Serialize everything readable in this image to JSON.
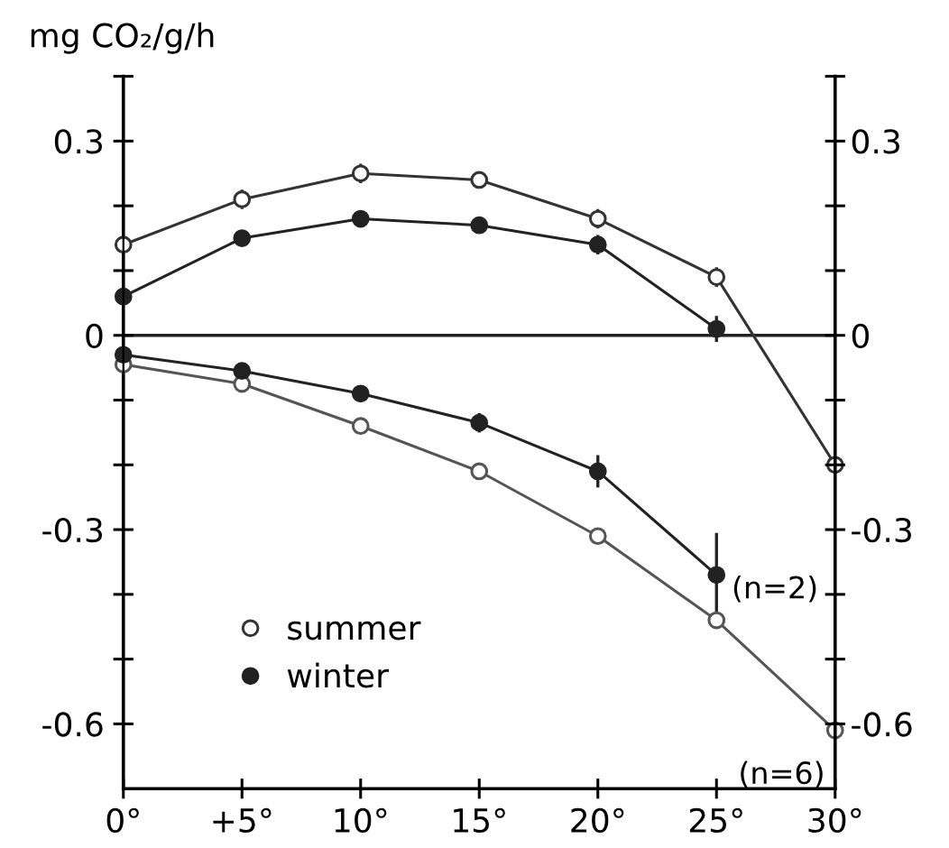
{
  "chart_data": {
    "type": "line",
    "ylabel": "mg CO₂/g/h",
    "x": [
      0,
      5,
      10,
      15,
      20,
      25,
      30
    ],
    "xlim": [
      0,
      30
    ],
    "xticks": [
      {
        "value": 0,
        "label": "0°"
      },
      {
        "value": 5,
        "label": "+5°"
      },
      {
        "value": 10,
        "label": "10°"
      },
      {
        "value": 15,
        "label": "15°"
      },
      {
        "value": 20,
        "label": "20°"
      },
      {
        "value": 25,
        "label": "25°"
      },
      {
        "value": 30,
        "label": "30°"
      }
    ],
    "ylim": [
      -0.7,
      0.4
    ],
    "yticks": [
      {
        "value": 0.4,
        "label": null
      },
      0.3,
      {
        "value": 0.2,
        "label": null
      },
      {
        "value": 0.1,
        "label": null
      },
      0,
      {
        "value": -0.1,
        "label": null
      },
      {
        "value": -0.2,
        "label": null
      },
      {
        "value": -0.3,
        "label": "-0.3"
      },
      {
        "value": -0.4,
        "label": null
      },
      {
        "value": -0.5,
        "label": null
      },
      {
        "value": -0.6,
        "label": "-0.6"
      }
    ],
    "y2lim": [
      -0.7,
      0.4
    ],
    "y2ticks": [
      {
        "value": 0.4,
        "label": null
      },
      0.3,
      {
        "value": 0.2,
        "label": null
      },
      {
        "value": 0.1,
        "label": null
      },
      0,
      {
        "value": -0.1,
        "label": null
      },
      {
        "value": -0.2,
        "label": null
      },
      {
        "value": -0.3,
        "label": "-0.3"
      },
      {
        "value": -0.4,
        "label": null
      },
      {
        "value": -0.5,
        "label": null
      },
      {
        "value": -0.6,
        "label": "-0.6"
      }
    ],
    "marker": "circle",
    "line_style": "solid",
    "grid": false,
    "legend": "bottom left",
    "ref_lines": [
      {
        "axis": "y",
        "value": 0,
        "label": null,
        "color": "#222222"
      }
    ],
    "series": [
      {
        "name": "summer",
        "color": "#333333",
        "colors": [
          "#ffffff",
          "#ffffff",
          "#ffffff",
          "#ffffff",
          "#ffffff",
          "#ffffff",
          "#ffffff"
        ],
        "values": [
          0.14,
          0.21,
          0.25,
          0.24,
          0.18,
          0.09,
          -0.2
        ],
        "errors": [
          0.01,
          0.015,
          0.015,
          0.01,
          0.015,
          0.015,
          0.015
        ]
      },
      {
        "name": "winter",
        "color": "#222222",
        "values": [
          0.06,
          0.15,
          0.18,
          0.17,
          0.14,
          0.01,
          null
        ],
        "errors": [
          0.01,
          0.01,
          0.01,
          0.01,
          0.015,
          0.02,
          null
        ]
      },
      {
        "color": "#555555",
        "colors": [
          "#ffffff",
          "#ffffff",
          "#ffffff",
          "#ffffff",
          "#ffffff",
          "#ffffff",
          "#ffffff"
        ],
        "values": [
          -0.045,
          -0.075,
          -0.14,
          -0.21,
          -0.31,
          -0.44,
          -0.61
        ]
      },
      {
        "color": "#222222",
        "values": [
          -0.03,
          -0.055,
          -0.09,
          -0.135,
          -0.21,
          -0.37,
          null
        ],
        "errors": [
          0.01,
          0.01,
          0.01,
          0.015,
          0.025,
          0.065,
          null
        ]
      }
    ],
    "annotations": [
      {
        "text": "(n=2)",
        "x": 25,
        "y": -0.37
      },
      {
        "text": "(n=6)",
        "x": 30,
        "y": -0.61
      }
    ]
  }
}
